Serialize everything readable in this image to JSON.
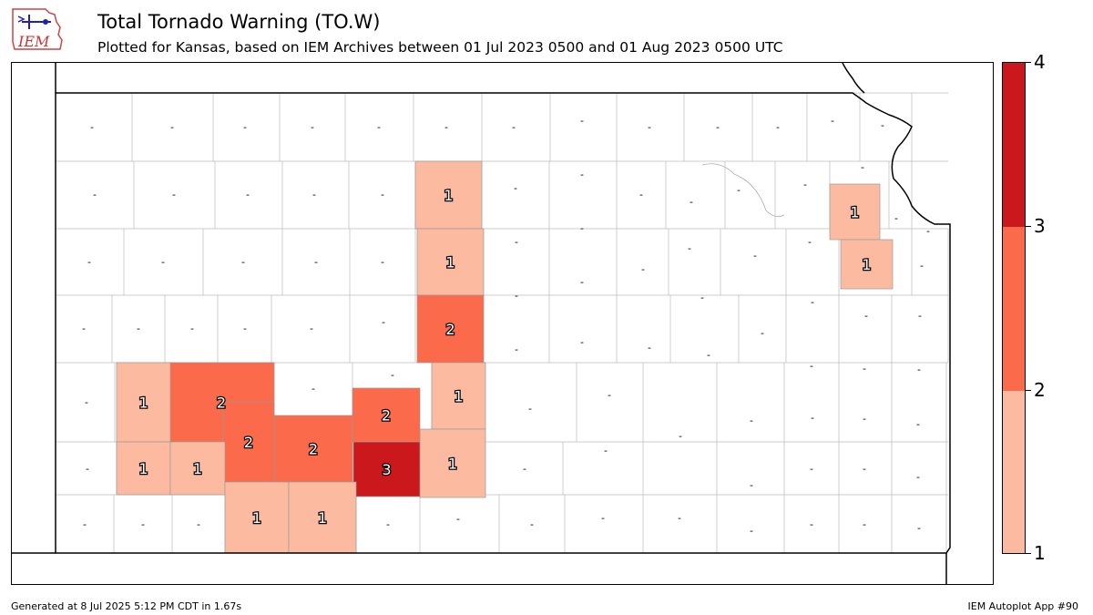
{
  "header": {
    "logo_text": "IEM",
    "title": "Total Tornado Warning (TO.W)",
    "subtitle": "Plotted for Kansas, based on IEM Archives  between 01 Jul 2023 0500 and 01 Aug 2023 0500 UTC"
  },
  "map": {
    "state": "Kansas",
    "colors": {
      "1": "#fcbba1",
      "2": "#fb6a4a",
      "3": "#cb181d",
      "none": "#ffffff"
    },
    "county_values": [
      {
        "value": "1"
      },
      {
        "value": "1"
      },
      {
        "value": "2"
      },
      {
        "value": "1"
      },
      {
        "value": "1"
      },
      {
        "value": "1"
      },
      {
        "value": "1"
      },
      {
        "value": "2"
      },
      {
        "value": "2"
      },
      {
        "value": "2"
      },
      {
        "value": "1"
      },
      {
        "value": "1"
      },
      {
        "value": "2"
      },
      {
        "value": "3"
      },
      {
        "value": "1"
      },
      {
        "value": "1"
      },
      {
        "value": "1"
      }
    ],
    "empty_label": "-"
  },
  "colorbar": {
    "labels": [
      "1",
      "2",
      "3",
      "4"
    ],
    "colors": [
      "#fcbba1",
      "#fb6a4a",
      "#cb181d"
    ]
  },
  "footer": {
    "left": "Generated at 8 Jul 2025 5:12 PM CDT in 1.67s",
    "right": "IEM Autoplot App #90"
  }
}
